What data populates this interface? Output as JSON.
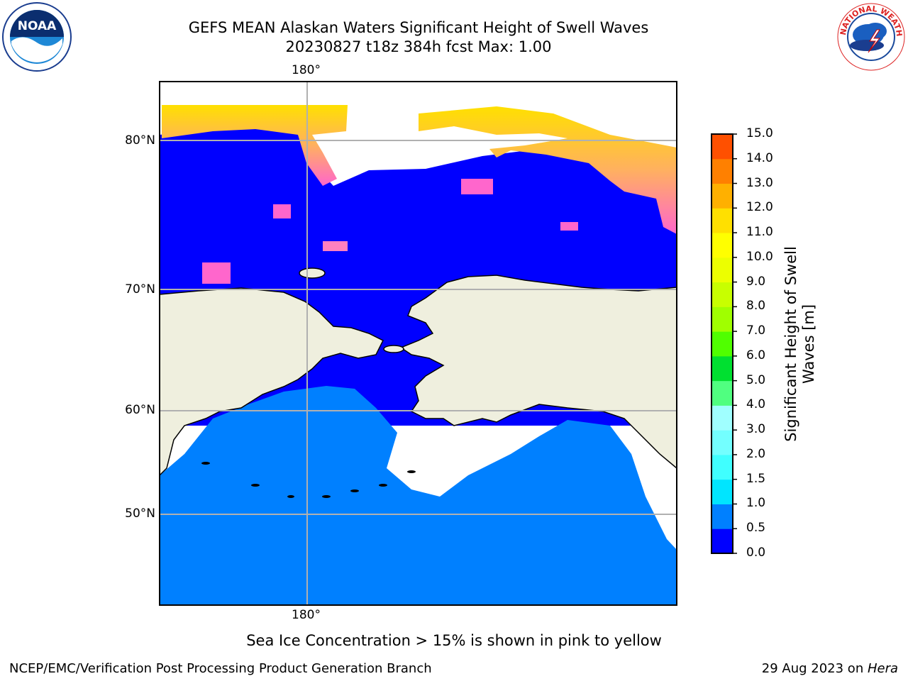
{
  "title": {
    "line1": "GEFS MEAN Alaskan Waters Significant Height of Swell Waves",
    "line2": "20230827 t18z 384h fcst   Max: 1.00"
  },
  "map": {
    "lon_label_top": "180°",
    "lon_label_bottom": "180°",
    "lat_labels": [
      "80°N",
      "70°N",
      "60°N",
      "50°N"
    ],
    "colors": {
      "ocean_low": "#0000ff",
      "ocean_mid": "#0080ff",
      "land": "#efefde",
      "ice_pink": "#ff66cc",
      "ice_yellow": "#ffe000",
      "grid": "#b0b0b0"
    }
  },
  "colorbar": {
    "ticks": [
      "15.0",
      "14.0",
      "13.0",
      "12.0",
      "11.0",
      "10.0",
      "9.0",
      "8.0",
      "7.0",
      "6.0",
      "5.0",
      "4.0",
      "3.0",
      "2.0",
      "1.5",
      "1.0",
      "0.5",
      "0.0"
    ],
    "colors": [
      "#0000ff",
      "#0080ff",
      "#00e5ff",
      "#40ffff",
      "#73ffff",
      "#a0ffff",
      "#50ff80",
      "#00e030",
      "#50ff00",
      "#a0ff00",
      "#c8ff00",
      "#ecff00",
      "#ffff00",
      "#ffe000",
      "#ffb000",
      "#ff8000",
      "#ff5000",
      "#ff2000",
      "#ff0000"
    ],
    "title": "Significant Height of Swell\nWaves [m]"
  },
  "caption": "Sea Ice Concentration > 15% is shown in pink to yellow",
  "footer": {
    "credit": "NCEP/EMC/Verification Post Processing Product Generation Branch",
    "date": "29 Aug 2023 on ",
    "machine": "Hera"
  },
  "logos": {
    "noaa_text": "NOAA",
    "nws_text": "NATIONAL WEATHER SERVICE"
  }
}
